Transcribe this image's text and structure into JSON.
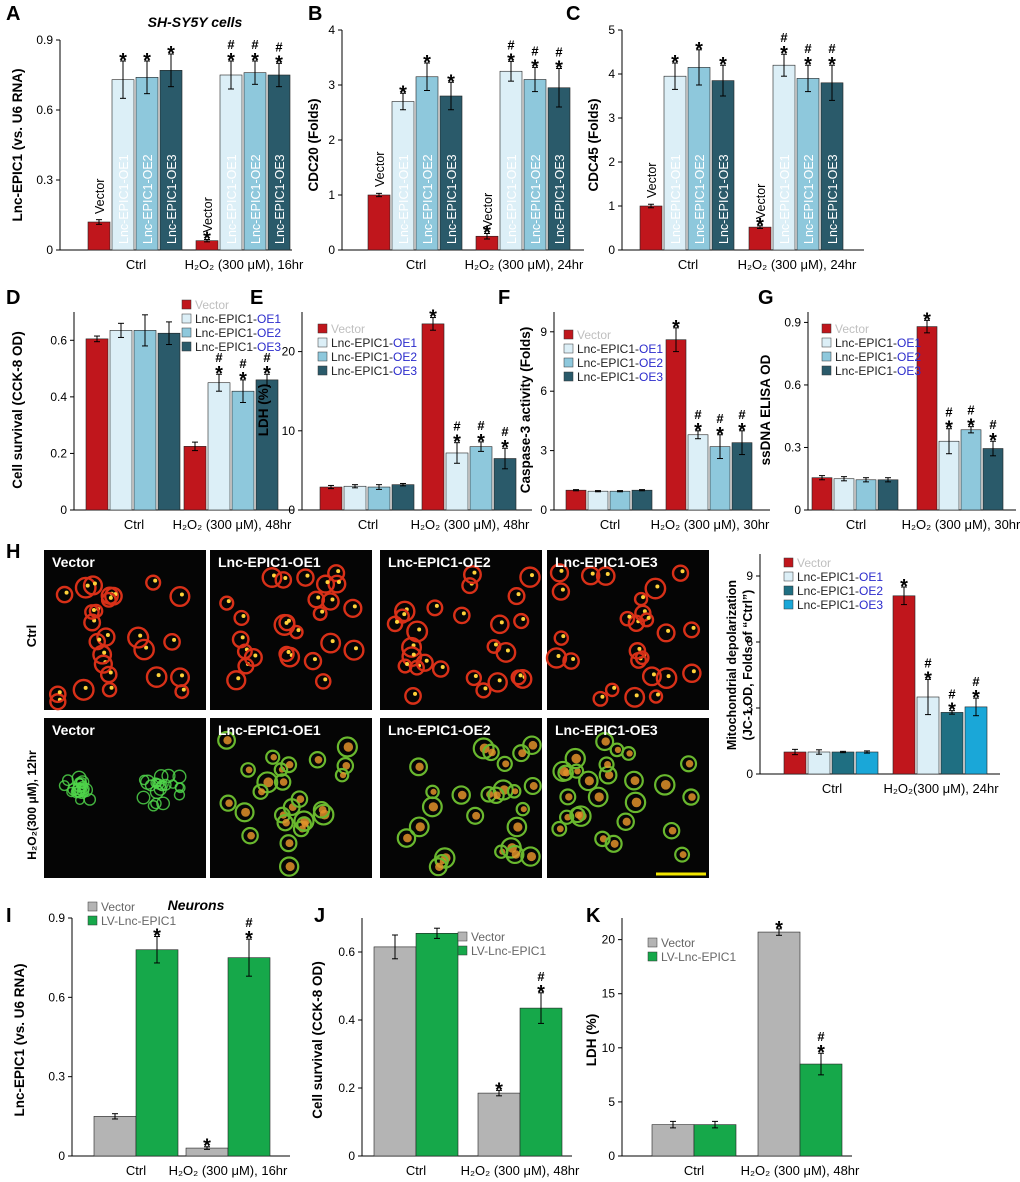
{
  "figure": {
    "cell_line_label": "SH-SY5Y cells",
    "neuron_label": "Neurons",
    "colors": {
      "vector": "#c0161c",
      "oe1": "#dceff7",
      "oe2": "#8ec8dc",
      "oe3": "#2a5a6a",
      "oe2_h": "#1f6f82",
      "oe3_h": "#1aa7d8",
      "grey": "#b4b4b4",
      "green": "#16a84a",
      "oe_text": "#2b2bcc"
    }
  },
  "chart_data": [
    {
      "panel": "A",
      "type": "bar",
      "ylabel": "Lnc-EPIC1 (vs. U6 RNA)",
      "ylim": [
        0,
        0.9
      ],
      "yticks": [
        "0",
        "0.3",
        "0.6",
        "0.9"
      ],
      "groups": [
        "Ctrl",
        "H₂O₂ (300 μM), 16hr"
      ],
      "series": [
        {
          "name": "Vector",
          "values": [
            0.12,
            0.04
          ],
          "errors": [
            0.01,
            0.005
          ]
        },
        {
          "name": "Lnc-EPIC1-OE1",
          "values": [
            0.73,
            0.75
          ],
          "errors": [
            0.08,
            0.06
          ]
        },
        {
          "name": "Lnc-EPIC1-OE2",
          "values": [
            0.74,
            0.76
          ],
          "errors": [
            0.07,
            0.05
          ]
        },
        {
          "name": "Lnc-EPIC1-OE3",
          "values": [
            0.77,
            0.75
          ],
          "errors": [
            0.07,
            0.05
          ]
        }
      ],
      "marks": [
        [
          "",
          "*"
        ],
        [
          "*",
          "*#"
        ],
        [
          "*",
          "*#"
        ],
        [
          "*",
          "*#"
        ]
      ]
    },
    {
      "panel": "B",
      "type": "bar",
      "ylabel": "CDC20 (Folds)",
      "ylim": [
        0,
        4
      ],
      "yticks": [
        "0",
        "1",
        "2",
        "3",
        "4"
      ],
      "groups": [
        "Ctrl",
        "H₂O₂ (300 μM), 24hr"
      ],
      "series": [
        {
          "name": "Vector",
          "values": [
            1.0,
            0.25
          ],
          "errors": [
            0.03,
            0.05
          ]
        },
        {
          "name": "Lnc-EPIC1-OE1",
          "values": [
            2.7,
            3.25
          ],
          "errors": [
            0.15,
            0.18
          ]
        },
        {
          "name": "Lnc-EPIC1-OE2",
          "values": [
            3.15,
            3.1
          ],
          "errors": [
            0.25,
            0.22
          ]
        },
        {
          "name": "Lnc-EPIC1-OE3",
          "values": [
            2.8,
            2.95
          ],
          "errors": [
            0.25,
            0.35
          ]
        }
      ],
      "marks": [
        [
          "",
          "*"
        ],
        [
          "*",
          "*#"
        ],
        [
          "*",
          "*#"
        ],
        [
          "*",
          "*#"
        ]
      ]
    },
    {
      "panel": "C",
      "type": "bar",
      "ylabel": "CDC45 (Folds)",
      "ylim": [
        0,
        5
      ],
      "yticks": [
        "0",
        "1",
        "2",
        "3",
        "4",
        "5"
      ],
      "groups": [
        "Ctrl",
        "H₂O₂ (300 μM), 24hr"
      ],
      "series": [
        {
          "name": "Vector",
          "values": [
            1.0,
            0.52
          ],
          "errors": [
            0.04,
            0.03
          ]
        },
        {
          "name": "Lnc-EPIC1-OE1",
          "values": [
            3.95,
            4.2
          ],
          "errors": [
            0.3,
            0.25
          ]
        },
        {
          "name": "Lnc-EPIC1-OE2",
          "values": [
            4.15,
            3.9
          ],
          "errors": [
            0.4,
            0.3
          ]
        },
        {
          "name": "Lnc-EPIC1-OE3",
          "values": [
            3.85,
            3.8
          ],
          "errors": [
            0.35,
            0.4
          ]
        }
      ],
      "marks": [
        [
          "",
          "*"
        ],
        [
          "*",
          "*#"
        ],
        [
          "*",
          "*#"
        ],
        [
          "*",
          "*#"
        ]
      ]
    },
    {
      "panel": "D",
      "type": "bar",
      "ylabel": "Cell survival (CCK-8 OD)",
      "ylim": [
        0,
        0.7
      ],
      "yticks": [
        "0",
        "0.2",
        "0.4",
        "0.6"
      ],
      "groups": [
        "Ctrl",
        "H₂O₂ (300 μM), 48hr"
      ],
      "legend": [
        "Vector",
        "Lnc-EPIC1-OE1",
        "Lnc-EPIC1-OE2",
        "Lnc-EPIC1-OE3"
      ],
      "series": [
        {
          "name": "Vector",
          "values": [
            0.605,
            0.225
          ],
          "errors": [
            0.01,
            0.015
          ]
        },
        {
          "name": "Lnc-EPIC1-OE1",
          "values": [
            0.635,
            0.45
          ],
          "errors": [
            0.025,
            0.03
          ]
        },
        {
          "name": "Lnc-EPIC1-OE2",
          "values": [
            0.635,
            0.42
          ],
          "errors": [
            0.055,
            0.04
          ]
        },
        {
          "name": "Lnc-EPIC1-OE3",
          "values": [
            0.625,
            0.46
          ],
          "errors": [
            0.04,
            0.02
          ]
        }
      ],
      "marks": [
        [
          "",
          ""
        ],
        [
          "",
          "*#"
        ],
        [
          "",
          "*#"
        ],
        [
          "",
          "*#"
        ]
      ]
    },
    {
      "panel": "E",
      "type": "bar",
      "ylabel": "LDH (%)",
      "ylim": [
        0,
        25
      ],
      "yticks": [
        "0",
        "10",
        "20"
      ],
      "groups": [
        "Ctrl",
        "H₂O₂ (300 μM), 48hr"
      ],
      "legend": [
        "Vector",
        "Lnc-EPIC1-OE1",
        "Lnc-EPIC1-OE2",
        "Lnc-EPIC1-OE3"
      ],
      "series": [
        {
          "name": "Vector",
          "values": [
            2.9,
            23.5
          ],
          "errors": [
            0.2,
            0.8
          ]
        },
        {
          "name": "Lnc-EPIC1-OE1",
          "values": [
            3.0,
            7.2
          ],
          "errors": [
            0.2,
            1.3
          ]
        },
        {
          "name": "Lnc-EPIC1-OE2",
          "values": [
            2.9,
            8.0
          ],
          "errors": [
            0.3,
            0.6
          ]
        },
        {
          "name": "Lnc-EPIC1-OE3",
          "values": [
            3.2,
            6.5
          ],
          "errors": [
            0.15,
            1.3
          ]
        }
      ],
      "marks": [
        [
          "",
          "*"
        ],
        [
          "",
          "*#"
        ],
        [
          "",
          "*#"
        ],
        [
          "",
          "*#"
        ]
      ]
    },
    {
      "panel": "F",
      "type": "bar",
      "ylabel": "Caspase-3 activity (Folds)",
      "ylim": [
        0,
        10
      ],
      "yticks": [
        "0",
        "3",
        "6",
        "9"
      ],
      "groups": [
        "Ctrl",
        "H₂O₂ (300 μM), 30hr"
      ],
      "legend": [
        "Vector",
        "Lnc-EPIC1-OE1",
        "Lnc-EPIC1-OE2",
        "Lnc-EPIC1-OE3"
      ],
      "series": [
        {
          "name": "Vector",
          "values": [
            1.0,
            8.6
          ],
          "errors": [
            0.03,
            0.6
          ]
        },
        {
          "name": "Lnc-EPIC1-OE1",
          "values": [
            0.95,
            3.8
          ],
          "errors": [
            0.03,
            0.2
          ]
        },
        {
          "name": "Lnc-EPIC1-OE2",
          "values": [
            0.95,
            3.2
          ],
          "errors": [
            0.03,
            0.6
          ]
        },
        {
          "name": "Lnc-EPIC1-OE3",
          "values": [
            1.0,
            3.4
          ],
          "errors": [
            0.03,
            0.6
          ]
        }
      ],
      "marks": [
        [
          "",
          "*"
        ],
        [
          "",
          "*#"
        ],
        [
          "",
          "*#"
        ],
        [
          "",
          "*#"
        ]
      ]
    },
    {
      "panel": "G",
      "type": "bar",
      "ylabel": "ssDNA ELISA OD",
      "ylim": [
        0,
        0.95
      ],
      "yticks": [
        "0",
        "0.3",
        "0.6",
        "0.9"
      ],
      "groups": [
        "Ctrl",
        "H₂O₂ (300 μM), 30hr"
      ],
      "legend": [
        "Vector",
        "Lnc-EPIC1-OE1",
        "Lnc-EPIC1-OE2",
        "Lnc-EPIC1-OE3"
      ],
      "series": [
        {
          "name": "Vector",
          "values": [
            0.155,
            0.88
          ],
          "errors": [
            0.01,
            0.03
          ]
        },
        {
          "name": "Lnc-EPIC1-OE1",
          "values": [
            0.15,
            0.33
          ],
          "errors": [
            0.01,
            0.06
          ]
        },
        {
          "name": "Lnc-EPIC1-OE2",
          "values": [
            0.145,
            0.385
          ],
          "errors": [
            0.01,
            0.015
          ]
        },
        {
          "name": "Lnc-EPIC1-OE3",
          "values": [
            0.145,
            0.295
          ],
          "errors": [
            0.01,
            0.035
          ]
        }
      ],
      "marks": [
        [
          "",
          "*"
        ],
        [
          "",
          "*#"
        ],
        [
          "",
          "*#"
        ],
        [
          "",
          "*#"
        ]
      ]
    },
    {
      "panel": "H",
      "type": "bar",
      "ylabel": "Mitochondrial depolarization",
      "ylabel2": "(JC-1 OD, Folds of “Ctrl”)",
      "ylim": [
        0,
        10
      ],
      "yticks": [
        "0",
        "3",
        "6",
        "9"
      ],
      "groups": [
        "Ctrl",
        "H₂O₂(300 μM), 24hr"
      ],
      "legend": [
        "Vector",
        "Lnc-EPIC1-OE1",
        "Lnc-EPIC1-OE2",
        "Lnc-EPIC1-OE3"
      ],
      "series": [
        {
          "name": "Vector",
          "values": [
            1.0,
            8.1
          ],
          "errors": [
            0.12,
            0.4
          ]
        },
        {
          "name": "Lnc-EPIC1-OE1",
          "values": [
            1.0,
            3.5
          ],
          "errors": [
            0.1,
            0.8
          ]
        },
        {
          "name": "Lnc-EPIC1-OE2",
          "values": [
            1.0,
            2.8
          ],
          "errors": [
            0.03,
            0.08
          ]
        },
        {
          "name": "Lnc-EPIC1-OE3",
          "values": [
            1.0,
            3.05
          ],
          "errors": [
            0.05,
            0.4
          ]
        }
      ],
      "marks": [
        [
          "",
          "*"
        ],
        [
          "",
          "*#"
        ],
        [
          "",
          "*#"
        ],
        [
          "",
          "*#"
        ]
      ]
    },
    {
      "panel": "I",
      "type": "bar",
      "ylabel": "Lnc-EPIC1 (vs. U6 RNA)",
      "ylim": [
        0,
        0.9
      ],
      "yticks": [
        "0",
        "0.3",
        "0.6",
        "0.9"
      ],
      "groups": [
        "Ctrl",
        "H₂O₂ (300 μM), 16hr"
      ],
      "legend": [
        "Vector",
        "LV-Lnc-EPIC1"
      ],
      "series": [
        {
          "name": "Vector",
          "values": [
            0.15,
            0.03
          ],
          "errors": [
            0.01,
            0.005
          ]
        },
        {
          "name": "LV-Lnc-EPIC1",
          "values": [
            0.78,
            0.75
          ],
          "errors": [
            0.05,
            0.07
          ]
        }
      ],
      "marks": [
        [
          "",
          "*"
        ],
        [
          "*",
          "*#"
        ]
      ]
    },
    {
      "panel": "J",
      "type": "bar",
      "ylabel": "Cell survival (CCK-8 OD)",
      "ylim": [
        0,
        0.7
      ],
      "yticks": [
        "0",
        "0.2",
        "0.4",
        "0.6"
      ],
      "groups": [
        "Ctrl",
        "H₂O₂ (300 μM), 48hr"
      ],
      "legend": [
        "Vector",
        "LV-Lnc-EPIC1"
      ],
      "series": [
        {
          "name": "Vector",
          "values": [
            0.615,
            0.185
          ],
          "errors": [
            0.035,
            0.008
          ]
        },
        {
          "name": "LV-Lnc-EPIC1",
          "values": [
            0.655,
            0.435
          ],
          "errors": [
            0.015,
            0.045
          ]
        }
      ],
      "marks": [
        [
          "",
          "*"
        ],
        [
          "",
          "*#"
        ]
      ]
    },
    {
      "panel": "K",
      "type": "bar",
      "ylabel": "LDH (%)",
      "ylim": [
        0,
        22
      ],
      "yticks": [
        "0",
        "5",
        "10",
        "15",
        "20"
      ],
      "groups": [
        "Ctrl",
        "H₂O₂ (300 μM), 48hr"
      ],
      "legend": [
        "Vector",
        "LV-Lnc-EPIC1"
      ],
      "series": [
        {
          "name": "Vector",
          "values": [
            2.9,
            20.7
          ],
          "errors": [
            0.3,
            0.3
          ]
        },
        {
          "name": "LV-Lnc-EPIC1",
          "values": [
            2.9,
            8.5
          ],
          "errors": [
            0.3,
            1.0
          ]
        }
      ],
      "marks": [
        [
          "",
          "*"
        ],
        [
          "",
          "*#"
        ]
      ]
    }
  ],
  "micrographs": {
    "row_labels": [
      "Ctrl",
      "H₂O₂(300 μM), 12hr"
    ],
    "tiles": [
      {
        "label": "Vector",
        "row": 0,
        "style": "red"
      },
      {
        "label": "Lnc-EPIC1-OE1",
        "row": 0,
        "style": "red"
      },
      {
        "label": "Lnc-EPIC1-OE2",
        "row": 0,
        "style": "red"
      },
      {
        "label": "Lnc-EPIC1-OE3",
        "row": 0,
        "style": "red"
      },
      {
        "label": "Vector",
        "row": 1,
        "style": "green"
      },
      {
        "label": "Lnc-EPIC1-OE1",
        "row": 1,
        "style": "mixed"
      },
      {
        "label": "Lnc-EPIC1-OE2",
        "row": 1,
        "style": "mixed"
      },
      {
        "label": "Lnc-EPIC1-OE3",
        "row": 1,
        "style": "mixed"
      }
    ]
  }
}
